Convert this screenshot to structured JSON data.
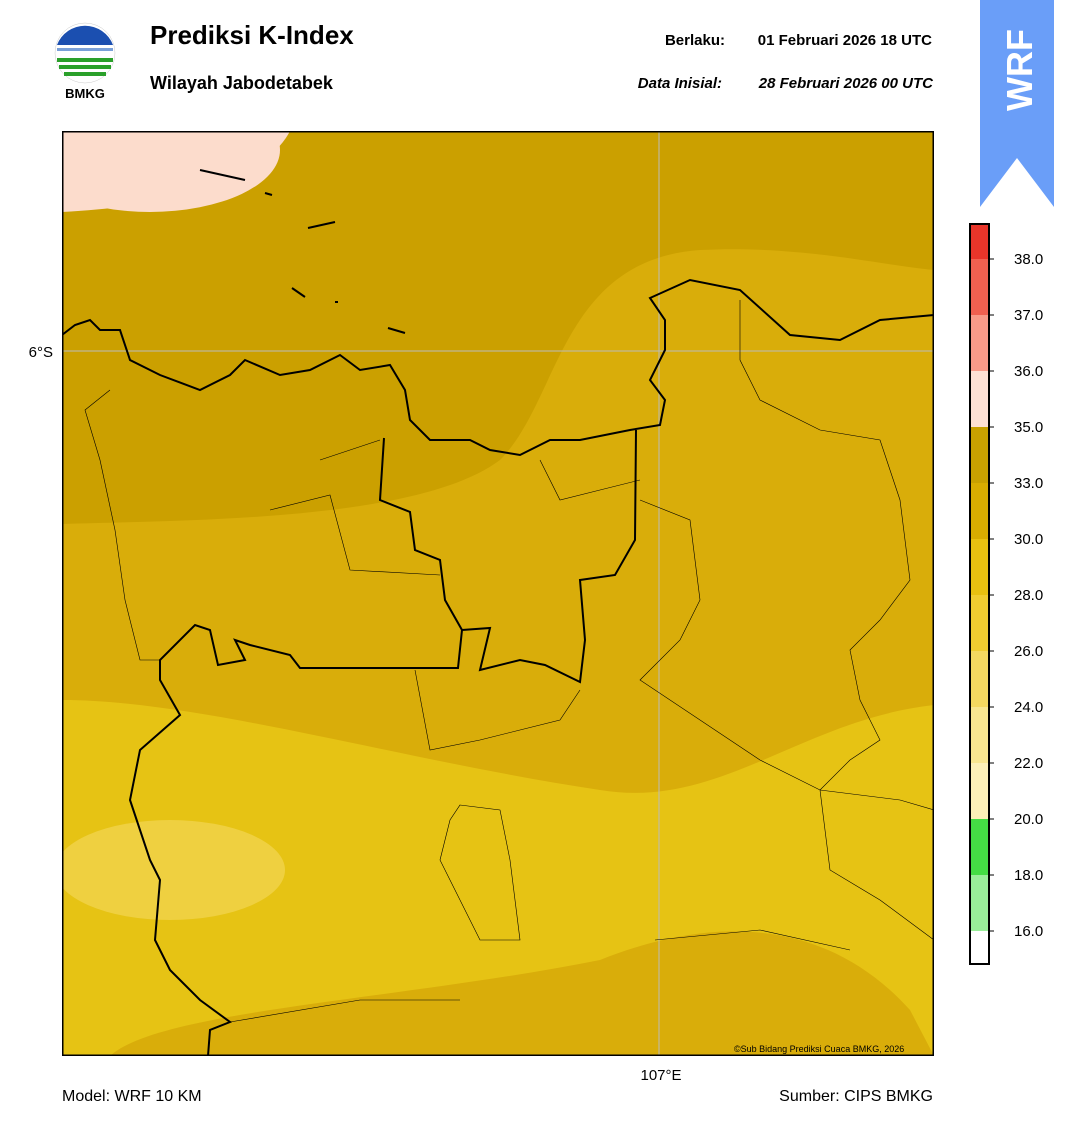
{
  "header": {
    "logo_text": "BMKG",
    "title": "Prediksi K-Index",
    "subtitle": "Wilayah Jabodetabek",
    "valid_label": "Berlaku:",
    "valid": "01 Februari 2026 18 UTC",
    "init_label": "Data Inisial:",
    "init": "28 Februari 2026 00 UTC",
    "badge": "WRF"
  },
  "map": {
    "lat_label": "6°S",
    "lon_label": "107°E",
    "copyright": "©Sub Bidang Prediksi Cuaca BMKG, 2026"
  },
  "colorbar": {
    "labels": [
      "38.0",
      "37.0",
      "36.0",
      "35.0",
      "33.0",
      "30.0",
      "28.0",
      "26.0",
      "24.0",
      "22.0",
      "20.0",
      "18.0",
      "16.0"
    ]
  },
  "footer": {
    "model": "Model: WRF 10 KM",
    "source": "Sumber: CIPS BMKG"
  }
}
